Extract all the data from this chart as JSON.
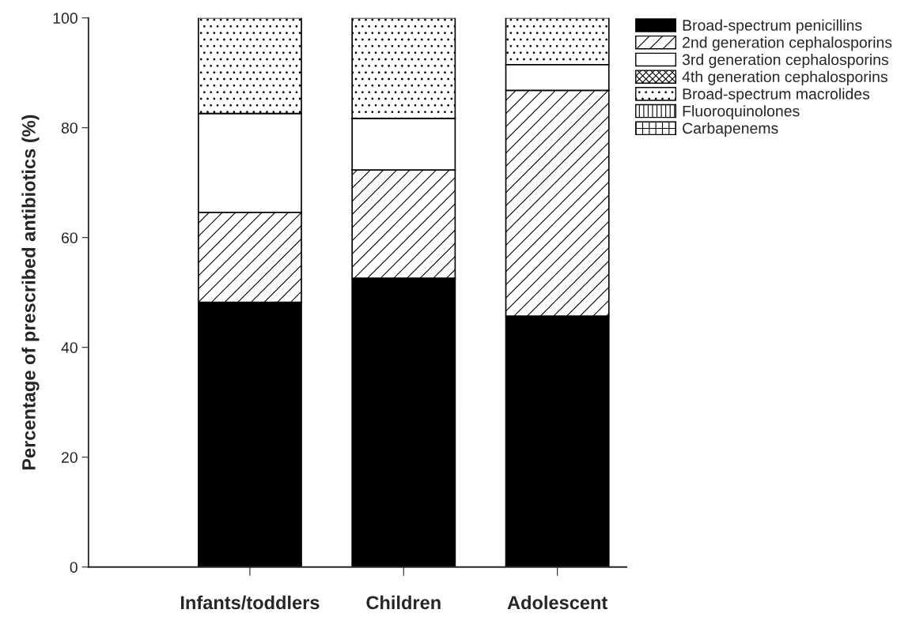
{
  "chart_data": {
    "type": "bar",
    "stacked": true,
    "ylabel": "Percentage of prescribed antibiotics (%)",
    "categories": [
      "Infants/toddlers",
      "Children",
      "Adolescent"
    ],
    "series": [
      {
        "name": "Broad-spectrum penicillins",
        "color": "#000000",
        "values": [
          48.2,
          52.6,
          45.7
        ]
      },
      {
        "name": "2nd generation cephalosporins",
        "color": "#ffffff",
        "values": [
          16.4,
          19.7,
          41.1
        ]
      },
      {
        "name": "3rd generation cephalosporins",
        "color": "#ffffff",
        "values": [
          18.0,
          9.4,
          4.7
        ]
      },
      {
        "name": "4th generation cephalosporins",
        "color": "#ffffff",
        "values": [
          0,
          0,
          0
        ]
      },
      {
        "name": "Broad-spectrum macrolides",
        "color": "#ffffff",
        "values": [
          17.4,
          18.3,
          8.5
        ]
      },
      {
        "name": "Fluoroquinolones",
        "color": "#ffffff",
        "values": [
          0,
          0,
          0
        ]
      },
      {
        "name": "Carbapenems",
        "color": "#ffffff",
        "values": [
          0,
          0,
          0
        ]
      }
    ],
    "ylim": [
      0,
      100
    ],
    "yticks": [
      0,
      20,
      40,
      60,
      80,
      100
    ],
    "grid": false,
    "legend": "top right"
  }
}
